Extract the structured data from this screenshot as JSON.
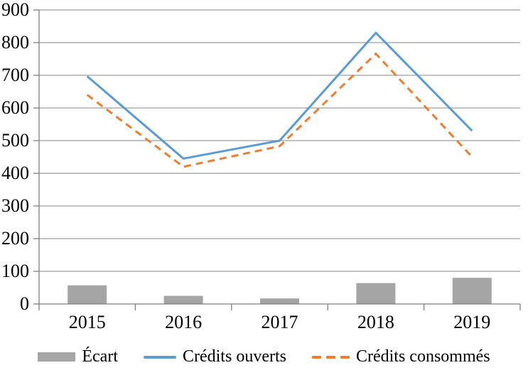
{
  "chart_data": {
    "type": "combo",
    "title": "",
    "xlabel": "",
    "ylabel": "",
    "categories": [
      "2015",
      "2016",
      "2017",
      "2018",
      "2019"
    ],
    "series": [
      {
        "name": "Écart",
        "type": "bar",
        "color": "#a5a5a5",
        "values": [
          57,
          25,
          17,
          64,
          80
        ]
      },
      {
        "name": "Crédits ouverts",
        "type": "line",
        "dash": "solid",
        "color": "#5b9bd5",
        "values": [
          697,
          445,
          500,
          830,
          530
        ]
      },
      {
        "name": "Crédits consommés",
        "type": "line",
        "dash": "dashed",
        "color": "#ed7d31",
        "values": [
          640,
          420,
          483,
          766,
          450
        ]
      }
    ],
    "ylim": [
      0,
      900
    ],
    "ytick_step": 100,
    "ytick_labels": [
      "0",
      "100",
      "200",
      "300",
      "400",
      "500",
      "600",
      "700",
      "800",
      "900"
    ],
    "grid": true,
    "legend_position": "bottom",
    "colors": {
      "grid": "#9e9e9e",
      "axis": "#7f7f7f",
      "text": "#000000",
      "background": "#ffffff"
    }
  }
}
